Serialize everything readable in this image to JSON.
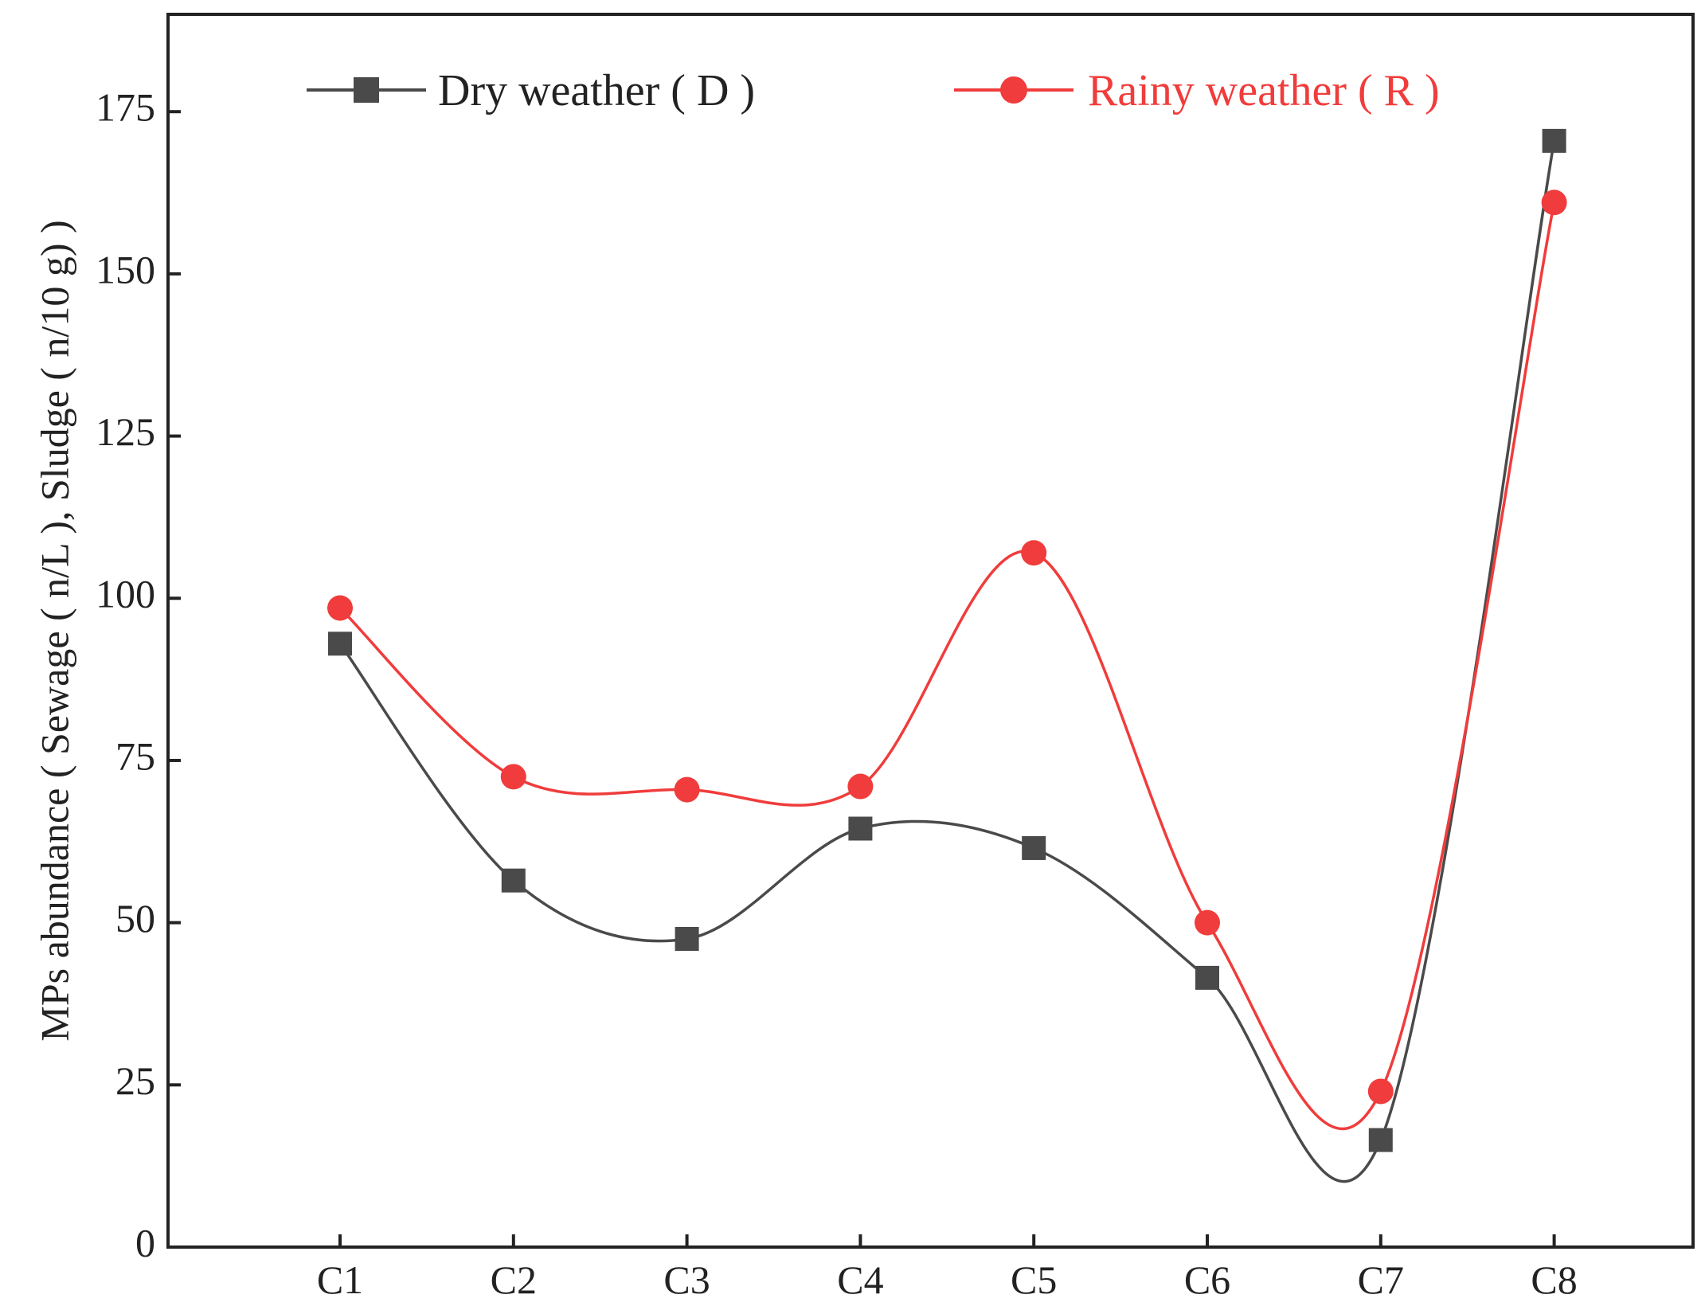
{
  "chart_data": {
    "type": "line",
    "title": "",
    "xlabel": "",
    "ylabel": "MPs abundance ( Sewage ( n/L ), Sludge ( n/10 g) )",
    "categories": [
      "C1",
      "C2",
      "C3",
      "C4",
      "C5",
      "C6",
      "C7",
      "C8"
    ],
    "ylim": [
      0,
      190
    ],
    "yticks": [
      0,
      25,
      50,
      75,
      100,
      125,
      150,
      175
    ],
    "ytick_labels": [
      "0",
      "25",
      "50",
      "75",
      "100",
      "125",
      "150",
      "175"
    ],
    "grid": false,
    "legend_position": "top",
    "series": [
      {
        "name": "Dry weather ( D )",
        "color": "#4a4a4a",
        "marker": "square",
        "values": [
          93,
          56.5,
          47.5,
          64.5,
          61.5,
          41.5,
          16.5,
          170.5
        ]
      },
      {
        "name": "Rainy weather ( R )",
        "color": "#f03c3c",
        "marker": "circle",
        "values": [
          98.5,
          72.5,
          70.5,
          71,
          107,
          50,
          24,
          161
        ]
      }
    ]
  }
}
